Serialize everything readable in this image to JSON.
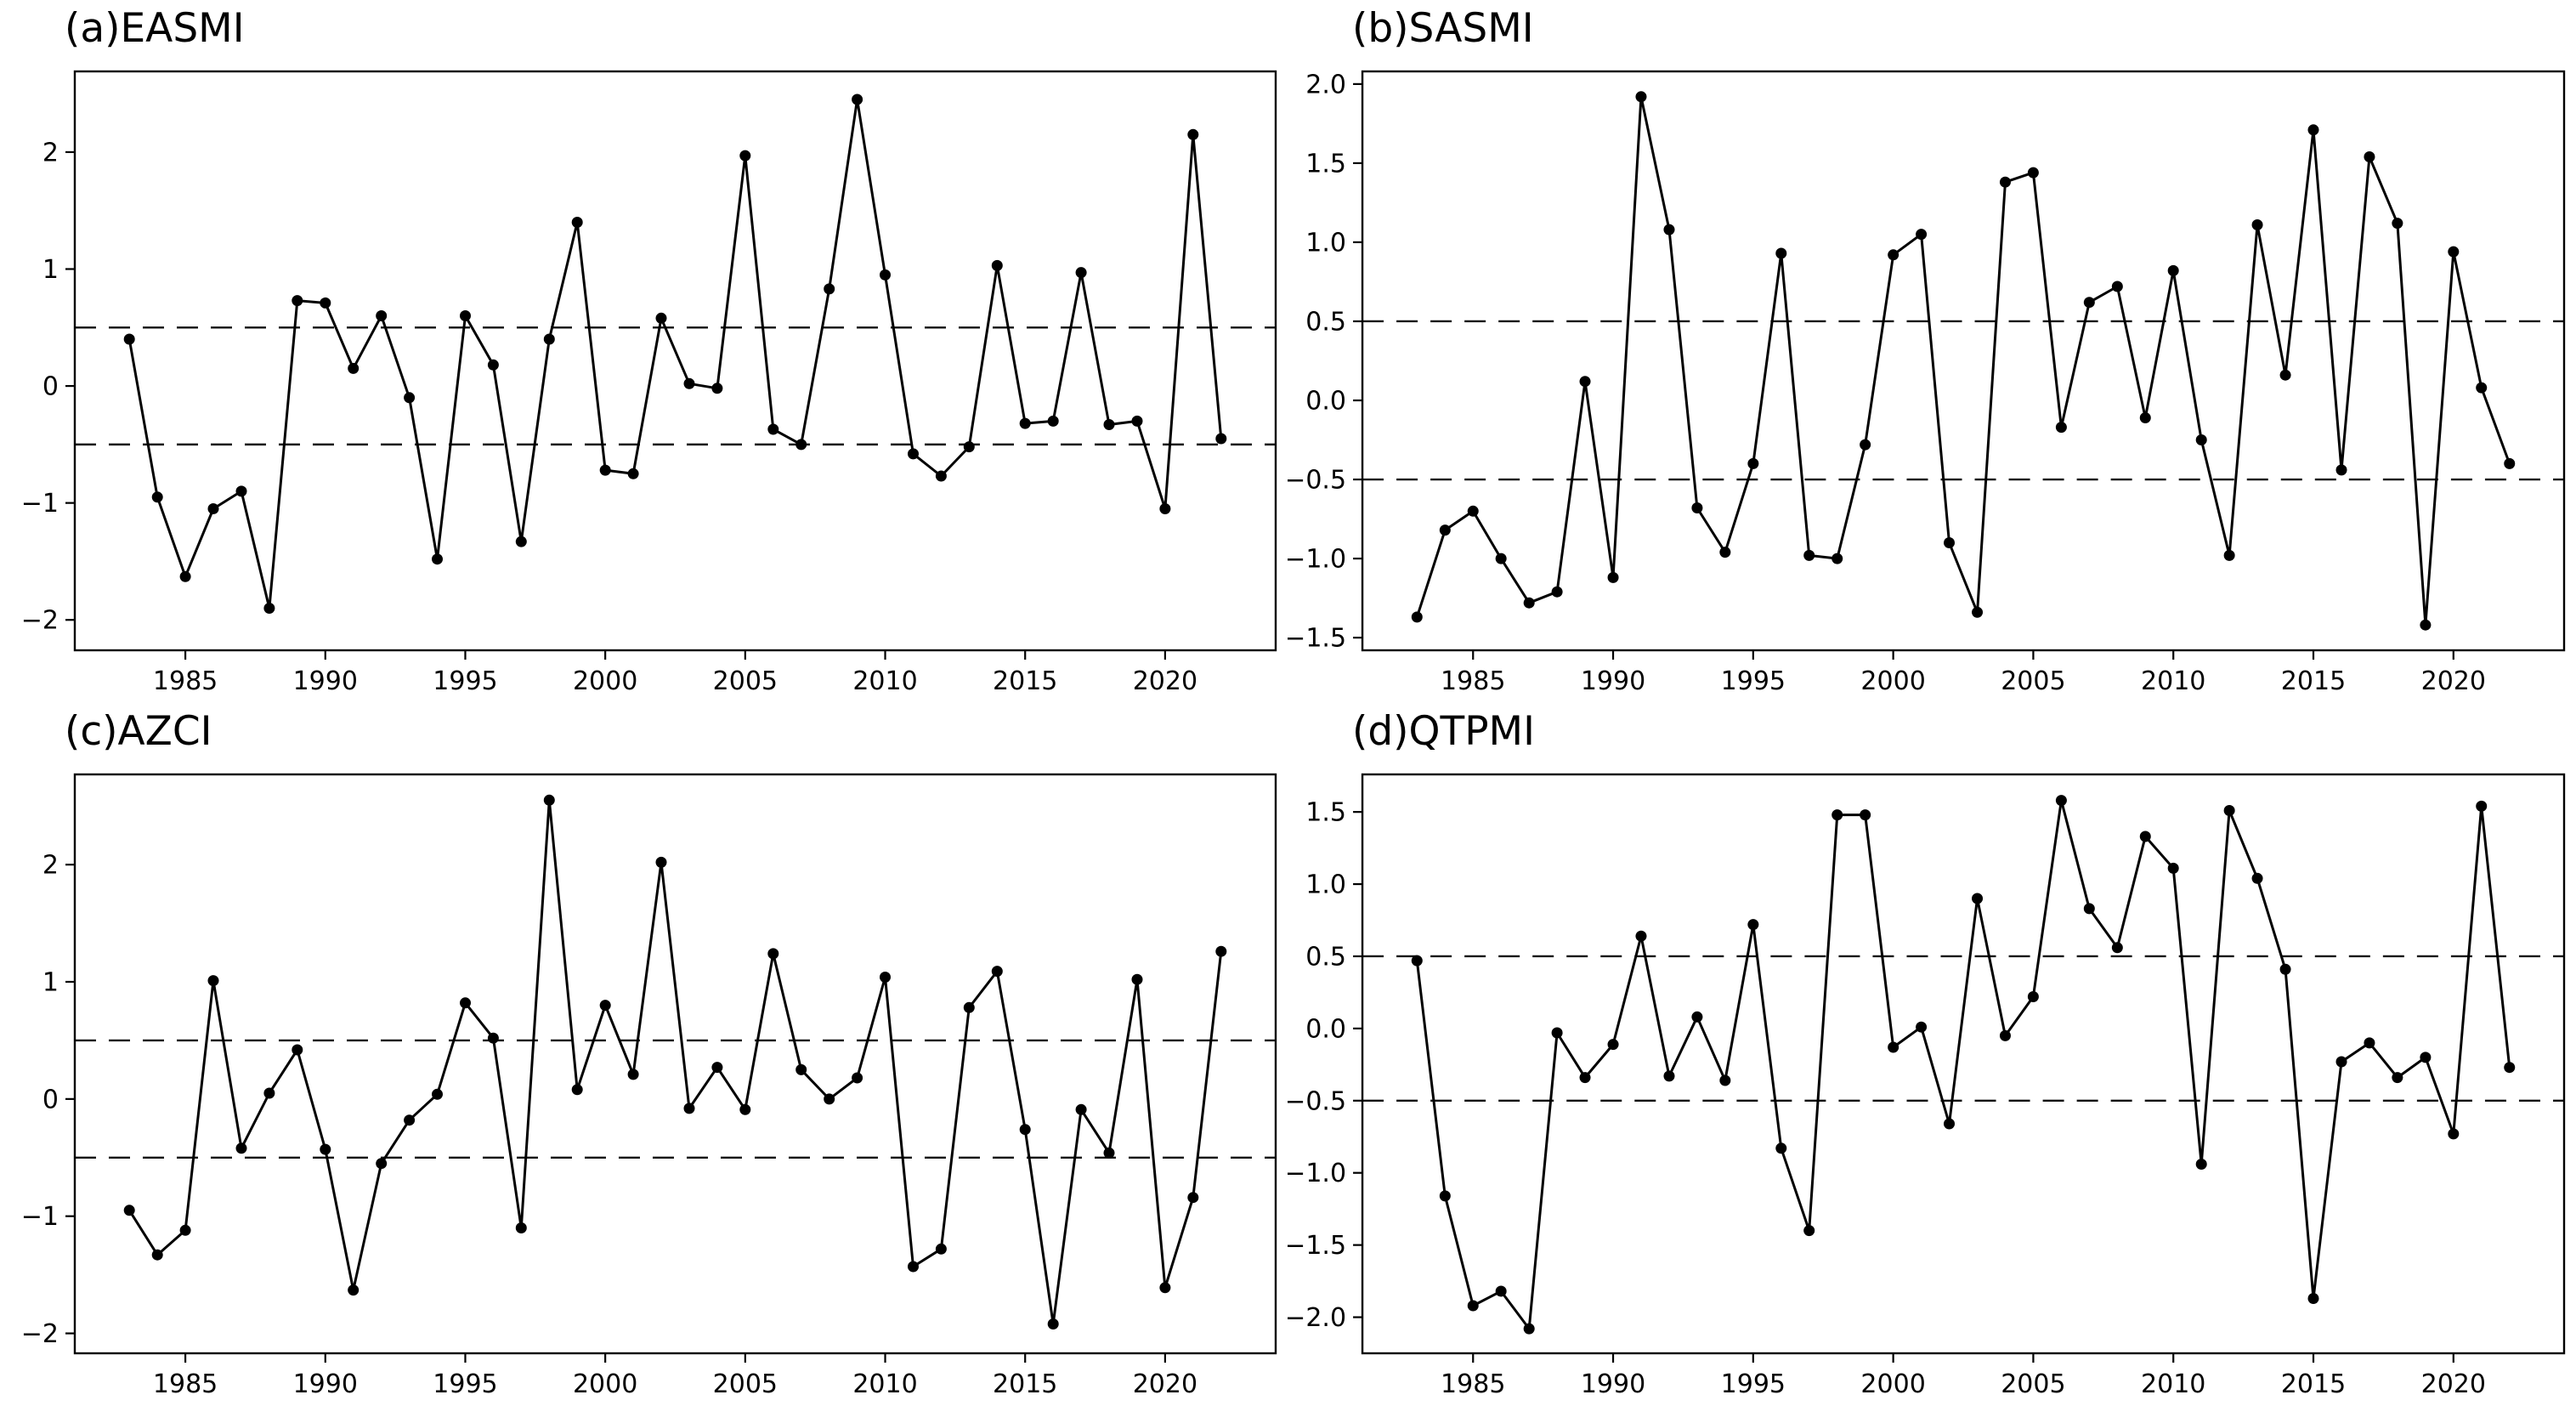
{
  "figure": {
    "background": "#ffffff",
    "line_color": "#000000",
    "marker_color": "#000000",
    "dashed_color": "#111111",
    "axis_color": "#000000",
    "tick_label_color": "#000000"
  },
  "chart_data": [
    {
      "type": "line",
      "title": "(a)EASMI",
      "xlabel": "",
      "ylabel": "",
      "legend": null,
      "grid": false,
      "x": [
        1983,
        1984,
        1985,
        1986,
        1987,
        1988,
        1989,
        1990,
        1991,
        1992,
        1993,
        1994,
        1995,
        1996,
        1997,
        1998,
        1999,
        2000,
        2001,
        2002,
        2003,
        2004,
        2005,
        2006,
        2007,
        2008,
        2009,
        2010,
        2011,
        2012,
        2013,
        2014,
        2015,
        2016,
        2017,
        2018,
        2019,
        2020,
        2021,
        2022
      ],
      "values": [
        0.4,
        -0.95,
        -1.63,
        -1.05,
        -0.9,
        -1.9,
        0.73,
        0.71,
        0.15,
        0.6,
        -0.1,
        -1.48,
        0.6,
        0.18,
        -1.33,
        0.4,
        1.4,
        -0.72,
        -0.75,
        0.58,
        0.02,
        -0.02,
        1.97,
        -0.37,
        -0.5,
        0.83,
        2.45,
        0.95,
        -0.58,
        -0.77,
        -0.52,
        1.03,
        -0.32,
        -0.3,
        0.97,
        -0.33,
        -0.3,
        -1.05,
        2.15,
        -0.45
      ],
      "thresholds": [
        0.5,
        -0.5
      ],
      "xlim": [
        1981.05,
        2023.95
      ],
      "ylim": [
        -2.26,
        2.69
      ],
      "xticks": [
        1985,
        1990,
        1995,
        2000,
        2005,
        2010,
        2015,
        2020
      ],
      "yticks": [
        -2,
        -1,
        0,
        1,
        2
      ],
      "ytick_labels": [
        "−2",
        "−1",
        "0",
        "1",
        "2"
      ]
    },
    {
      "type": "line",
      "title": "(b)SASMI",
      "xlabel": "",
      "ylabel": "",
      "legend": null,
      "grid": false,
      "x": [
        1983,
        1984,
        1985,
        1986,
        1987,
        1988,
        1989,
        1990,
        1991,
        1992,
        1993,
        1994,
        1995,
        1996,
        1997,
        1998,
        1999,
        2000,
        2001,
        2002,
        2003,
        2004,
        2005,
        2006,
        2007,
        2008,
        2009,
        2010,
        2011,
        2012,
        2013,
        2014,
        2015,
        2016,
        2017,
        2018,
        2019,
        2020,
        2021,
        2022
      ],
      "values": [
        -1.37,
        -0.82,
        -0.7,
        -1.0,
        -1.28,
        -1.21,
        0.12,
        -1.12,
        1.92,
        1.08,
        -0.68,
        -0.96,
        -0.4,
        0.93,
        -0.98,
        -1.0,
        -0.28,
        0.92,
        1.05,
        -0.9,
        -1.34,
        1.38,
        1.44,
        -0.17,
        0.62,
        0.72,
        -0.11,
        0.82,
        -0.25,
        -0.98,
        1.11,
        0.16,
        1.71,
        -0.44,
        1.54,
        1.12,
        -1.42,
        0.94,
        0.08,
        -0.4
      ],
      "thresholds": [
        0.5,
        -0.5
      ],
      "xlim": [
        1981.05,
        2023.95
      ],
      "ylim": [
        -1.58,
        2.08
      ],
      "xticks": [
        1985,
        1990,
        1995,
        2000,
        2005,
        2010,
        2015,
        2020
      ],
      "yticks": [
        -1.5,
        -1.0,
        -0.5,
        0.0,
        0.5,
        1.0,
        1.5,
        2.0
      ],
      "ytick_labels": [
        "−1.5",
        "−1.0",
        "−0.5",
        "0.0",
        "0.5",
        "1.0",
        "1.5",
        "2.0"
      ]
    },
    {
      "type": "line",
      "title": "(c)AZCI",
      "xlabel": "",
      "ylabel": "",
      "legend": null,
      "grid": false,
      "x": [
        1983,
        1984,
        1985,
        1986,
        1987,
        1988,
        1989,
        1990,
        1991,
        1992,
        1993,
        1994,
        1995,
        1996,
        1997,
        1998,
        1999,
        2000,
        2001,
        2002,
        2003,
        2004,
        2005,
        2006,
        2007,
        2008,
        2009,
        2010,
        2011,
        2012,
        2013,
        2014,
        2015,
        2016,
        2017,
        2018,
        2019,
        2020,
        2021,
        2022
      ],
      "values": [
        -0.95,
        -1.33,
        -1.12,
        1.01,
        -0.42,
        0.05,
        0.42,
        -0.43,
        -1.63,
        -0.55,
        -0.18,
        0.04,
        0.82,
        0.52,
        -1.1,
        2.55,
        0.08,
        0.8,
        0.21,
        2.02,
        -0.08,
        0.27,
        -0.09,
        1.24,
        0.25,
        0.0,
        0.18,
        1.04,
        -1.43,
        -1.28,
        0.78,
        1.09,
        -0.26,
        -1.92,
        -0.09,
        -0.46,
        1.02,
        -1.61,
        -0.84,
        1.26
      ],
      "thresholds": [
        0.5,
        -0.5
      ],
      "xlim": [
        1981.05,
        2023.95
      ],
      "ylim": [
        -2.17,
        2.77
      ],
      "xticks": [
        1985,
        1990,
        1995,
        2000,
        2005,
        2010,
        2015,
        2020
      ],
      "yticks": [
        -2,
        -1,
        0,
        1,
        2
      ],
      "ytick_labels": [
        "−2",
        "−1",
        "0",
        "1",
        "2"
      ]
    },
    {
      "type": "line",
      "title": "(d)QTPMI",
      "xlabel": "",
      "ylabel": "",
      "legend": null,
      "grid": false,
      "x": [
        1983,
        1984,
        1985,
        1986,
        1987,
        1988,
        1989,
        1990,
        1991,
        1992,
        1993,
        1994,
        1995,
        1996,
        1997,
        1998,
        1999,
        2000,
        2001,
        2002,
        2003,
        2004,
        2005,
        2006,
        2007,
        2008,
        2009,
        2010,
        2011,
        2012,
        2013,
        2014,
        2015,
        2016,
        2017,
        2018,
        2019,
        2020,
        2021,
        2022
      ],
      "values": [
        0.47,
        -1.16,
        -1.92,
        -1.82,
        -2.08,
        -0.03,
        -0.34,
        -0.11,
        0.64,
        -0.33,
        0.08,
        -0.36,
        0.72,
        -0.83,
        -1.4,
        1.48,
        1.48,
        -0.13,
        0.01,
        -0.66,
        0.9,
        -0.05,
        0.22,
        1.58,
        0.83,
        0.56,
        1.33,
        1.11,
        -0.94,
        1.51,
        1.04,
        0.41,
        -1.87,
        -0.23,
        -0.1,
        -0.34,
        -0.2,
        -0.73,
        1.54,
        -0.27
      ],
      "thresholds": [
        0.5,
        -0.5
      ],
      "xlim": [
        1981.05,
        2023.95
      ],
      "ylim": [
        -2.25,
        1.76
      ],
      "xticks": [
        1985,
        1990,
        1995,
        2000,
        2005,
        2010,
        2015,
        2020
      ],
      "yticks": [
        -2.0,
        -1.5,
        -1.0,
        -0.5,
        0.0,
        0.5,
        1.0,
        1.5
      ],
      "ytick_labels": [
        "−2.0",
        "−1.5",
        "−1.0",
        "−0.5",
        "0.0",
        "0.5",
        "1.0",
        "1.5"
      ]
    }
  ]
}
